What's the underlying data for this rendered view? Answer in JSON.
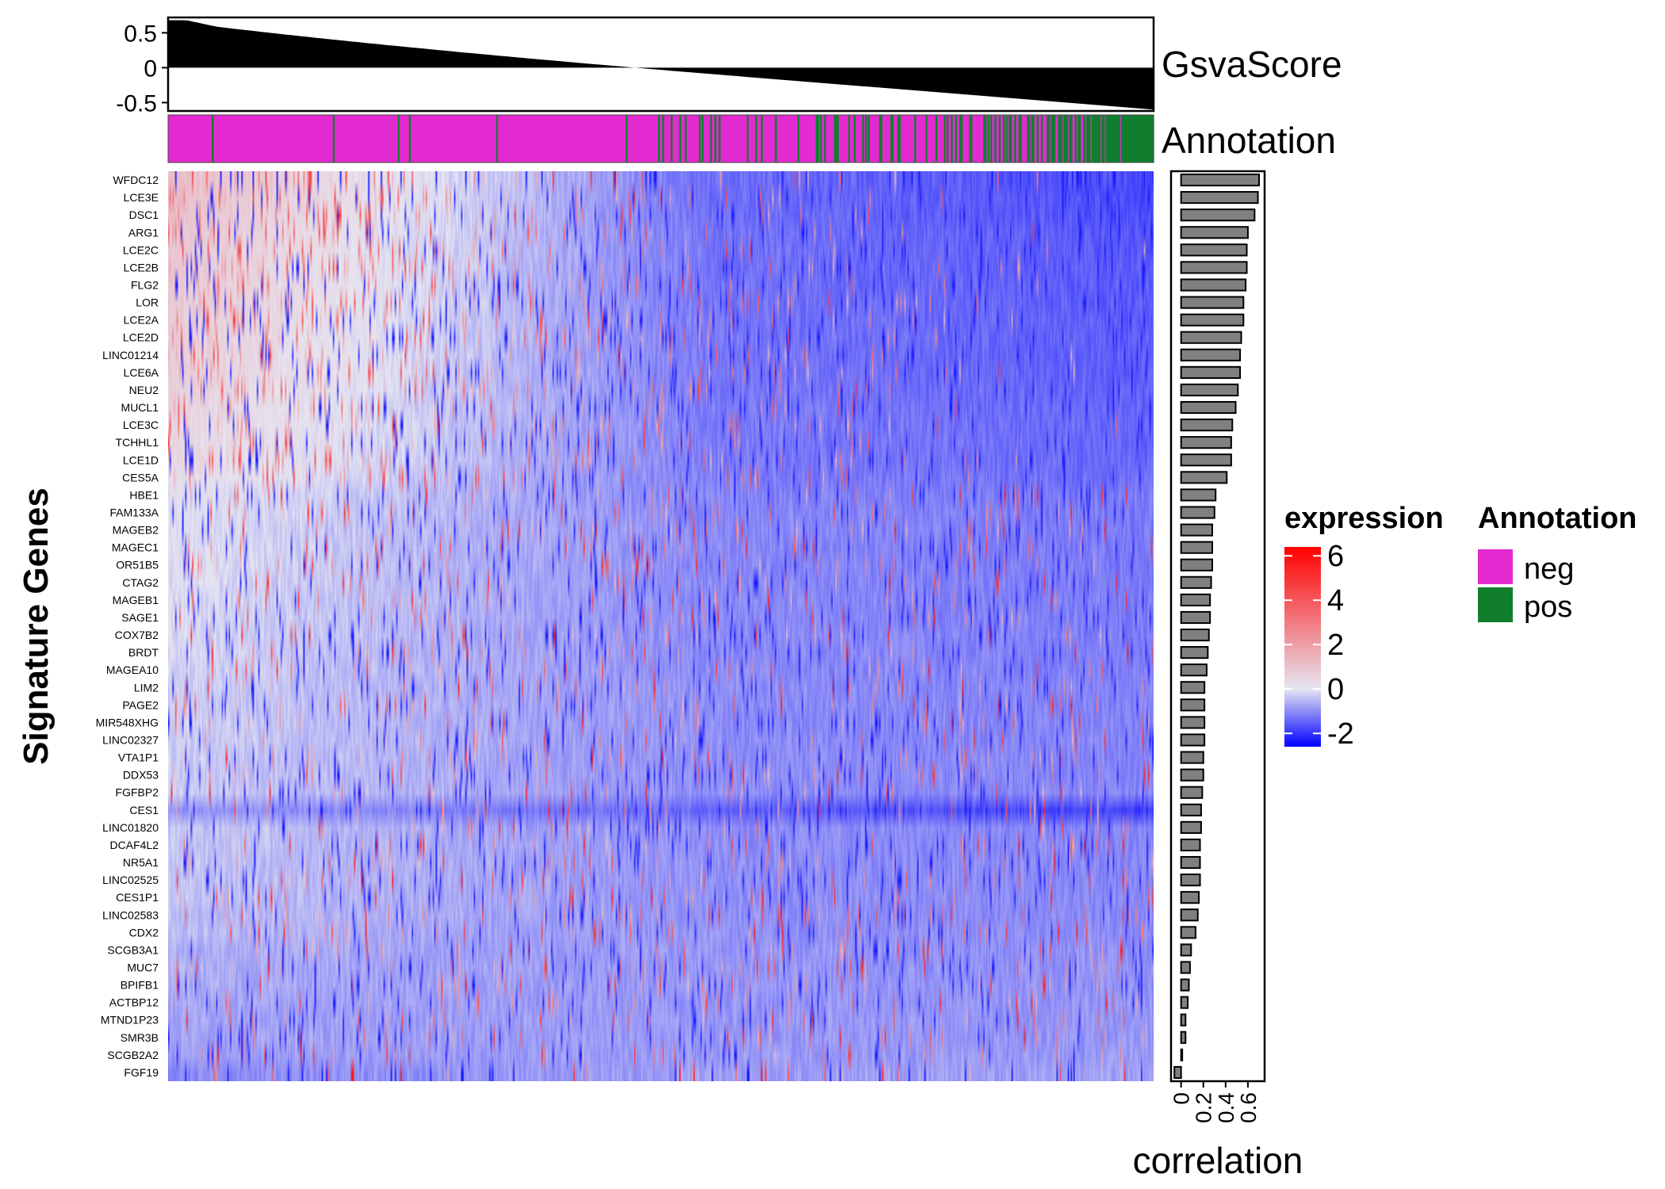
{
  "chart_data": {
    "type": "heatmap",
    "ylabel": "Signature Genes",
    "genes": [
      "WFDC12",
      "LCE3E",
      "DSC1",
      "ARG1",
      "LCE2C",
      "LCE2B",
      "FLG2",
      "LOR",
      "LCE2A",
      "LCE2D",
      "LINC01214",
      "LCE6A",
      "NEU2",
      "MUCL1",
      "LCE3C",
      "TCHHL1",
      "LCE1D",
      "CES5A",
      "HBE1",
      "FAM133A",
      "MAGEB2",
      "MAGEC1",
      "OR51B5",
      "CTAG2",
      "MAGEB1",
      "SAGE1",
      "COX7B2",
      "BRDT",
      "MAGEA10",
      "LIM2",
      "PAGE2",
      "MIR548XHG",
      "LINC02327",
      "VTA1P1",
      "DDX53",
      "FGFBP2",
      "CES1",
      "LINC01820",
      "DCAF4L2",
      "NR5A1",
      "LINC02525",
      "CES1P1",
      "LINC02583",
      "CDX2",
      "SCGB3A1",
      "MUC7",
      "BPIFB1",
      "ACTBP12",
      "MTND1P23",
      "SMR3B",
      "SCGB2A2",
      "FGF19"
    ],
    "correlation": [
      0.7,
      0.69,
      0.66,
      0.6,
      0.59,
      0.59,
      0.58,
      0.56,
      0.56,
      0.54,
      0.53,
      0.53,
      0.51,
      0.49,
      0.46,
      0.45,
      0.45,
      0.41,
      0.31,
      0.3,
      0.28,
      0.28,
      0.28,
      0.27,
      0.26,
      0.26,
      0.25,
      0.24,
      0.23,
      0.21,
      0.21,
      0.21,
      0.21,
      0.2,
      0.2,
      0.19,
      0.18,
      0.18,
      0.17,
      0.17,
      0.17,
      0.16,
      0.15,
      0.13,
      0.09,
      0.08,
      0.07,
      0.06,
      0.04,
      0.04,
      0.01,
      -0.06
    ],
    "gsva_panel": {
      "label": "GsvaScore",
      "yticks": [
        "0.5",
        "0",
        "-0.5"
      ],
      "ylim": [
        -0.62,
        0.72
      ],
      "max": 0.68,
      "min": -0.6,
      "note_samples_sorted": "descending"
    },
    "annotation_panel": {
      "label": "Annotation",
      "legend_title": "Annotation",
      "levels": [
        {
          "name": "neg",
          "color": "#E32AD0"
        },
        {
          "name": "pos",
          "color": "#117E2E"
        }
      ]
    },
    "expression_legend": {
      "title": "expression",
      "ticks": [
        "6",
        "4",
        "2",
        "0",
        "-2"
      ],
      "range": [
        -2.6,
        6.4
      ],
      "colors": {
        "low": "#0000FF",
        "mid": "#E6E6F2",
        "high": "#FF0000"
      }
    },
    "correlation_axis": {
      "title": "correlation",
      "ticks": [
        "0",
        "0.2",
        "0.4",
        "0.6"
      ],
      "xlim": [
        -0.09,
        0.75
      ]
    }
  }
}
